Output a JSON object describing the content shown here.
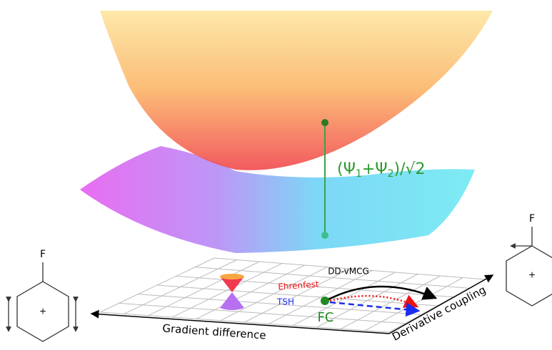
{
  "state_label": {
    "parts": [
      "(Ψ",
      "1",
      "+Ψ",
      "2",
      ")/√2"
    ]
  },
  "left_molecule": {
    "substituent": "F"
  },
  "right_molecule": {
    "substituent": "F"
  },
  "trajectories": {
    "dd_vmcg": "DD-vMCG",
    "ehrenfest": "Ehrenfest",
    "tsh": "TSH",
    "start": "FC"
  },
  "axes": {
    "x_label": "Gradient difference",
    "y_label": "Derivative coupling"
  }
}
